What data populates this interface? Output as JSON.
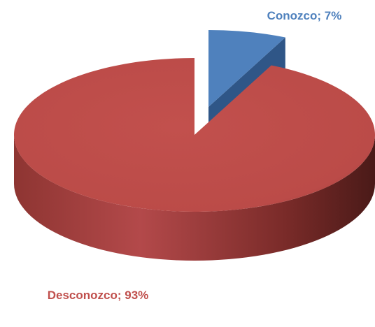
{
  "chart_data": {
    "type": "pie",
    "values": [
      7,
      93
    ],
    "value_labels": [
      "Conozco; 7%",
      "Desconozco; 93%"
    ],
    "colors": [
      "#4f81bd",
      "#c0504d"
    ]
  }
}
